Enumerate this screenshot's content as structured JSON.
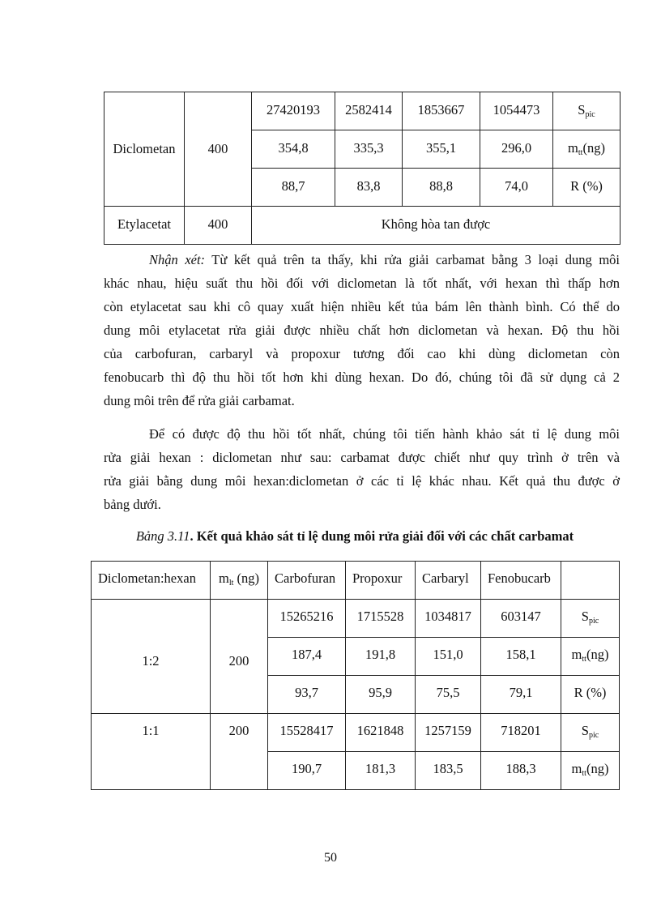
{
  "table_top": {
    "rows": [
      {
        "solvent": "Diclometan",
        "amount": "400",
        "subrows": [
          {
            "values": [
              "27420193",
              "2582414",
              "1853667",
              "1054473"
            ],
            "unit_main": "S",
            "unit_sub": "pic",
            "unit_tail": ""
          },
          {
            "values": [
              "354,8",
              "335,3",
              "355,1",
              "296,0"
            ],
            "unit_main": "m",
            "unit_sub": "tt",
            "unit_tail": "(ng)"
          },
          {
            "values": [
              "88,7",
              "83,8",
              "88,8",
              "74,0"
            ],
            "unit_main": "R (%)",
            "unit_sub": "",
            "unit_tail": ""
          }
        ]
      },
      {
        "solvent": "Etylacetat",
        "amount": "400",
        "note": "Không hòa tan được"
      }
    ]
  },
  "paragraph1": {
    "label": "Nhận xét:",
    "lines": [
      " Từ kết quả trên ta thấy, khi rửa giải carbamat bằng 3 loại dung môi",
      "khác nhau, hiệu suất thu hồi đối với diclometan là tốt nhất, với hexan thì thấp hơn",
      "còn etylacetat sau khi cô quay xuất hiện nhiều kết tủa bám lên thành bình. Có thể do",
      "dung môi etylacetat rửa giải được nhiều chất hơn diclometan và hexan. Độ thu hồi",
      "của carbofuran, carbaryl và propoxur tương đối cao khi dùng diclometan còn",
      "fenobucarb thì độ thu hồi tốt hơn khi dùng hexan. Do đó, chúng tôi đã sử dụng cả 2",
      "dung môi trên để rửa giải carbamat."
    ]
  },
  "paragraph2": {
    "lines": [
      "Để có được độ thu hồi tốt nhất, chúng tôi tiến hành khảo sát tỉ lệ dung môi",
      "rửa giải hexan : diclometan như sau: carbamat được chiết như quy trình ở trên và",
      "rửa giải bằng dung môi hexan:diclometan ở các tỉ lệ khác nhau. Kết quả thu được ở",
      "bảng dưới."
    ]
  },
  "caption": {
    "label": "Bảng 3.11",
    "text": ". Kết quả khảo sát tỉ lệ dung môi rửa giải đối với các chất carbamat"
  },
  "table_311": {
    "headers": {
      "ratio": "Diclometan:hexan",
      "mass_main": "m",
      "mass_sub": "lt",
      "mass_tail": " (ng)",
      "compounds": [
        "Carbofuran",
        "Propoxur",
        "Carbaryl",
        "Fenobucarb"
      ],
      "unit": ""
    },
    "groups": [
      {
        "ratio": "1:2",
        "amount": "200",
        "subrows": [
          {
            "values": [
              "15265216",
              "1715528",
              "1034817",
              "603147"
            ],
            "unit_main": "S",
            "unit_sub": "pic",
            "unit_tail": ""
          },
          {
            "values": [
              "187,4",
              "191,8",
              "151,0",
              "158,1"
            ],
            "unit_main": "m",
            "unit_sub": "tt",
            "unit_tail": "(ng)"
          },
          {
            "values": [
              "93,7",
              "95,9",
              "75,5",
              "79,1"
            ],
            "unit_main": "R (%)",
            "unit_sub": "",
            "unit_tail": ""
          }
        ]
      },
      {
        "ratio": "1:1",
        "amount": "200",
        "subrows": [
          {
            "values": [
              "15528417",
              "1621848",
              "1257159",
              "718201"
            ],
            "unit_main": "S",
            "unit_sub": "pic",
            "unit_tail": ""
          },
          {
            "values": [
              "190,7",
              "181,3",
              "183,5",
              "188,3"
            ],
            "unit_main": "m",
            "unit_sub": "tt",
            "unit_tail": "(ng)"
          }
        ]
      }
    ]
  },
  "page_number": "50"
}
